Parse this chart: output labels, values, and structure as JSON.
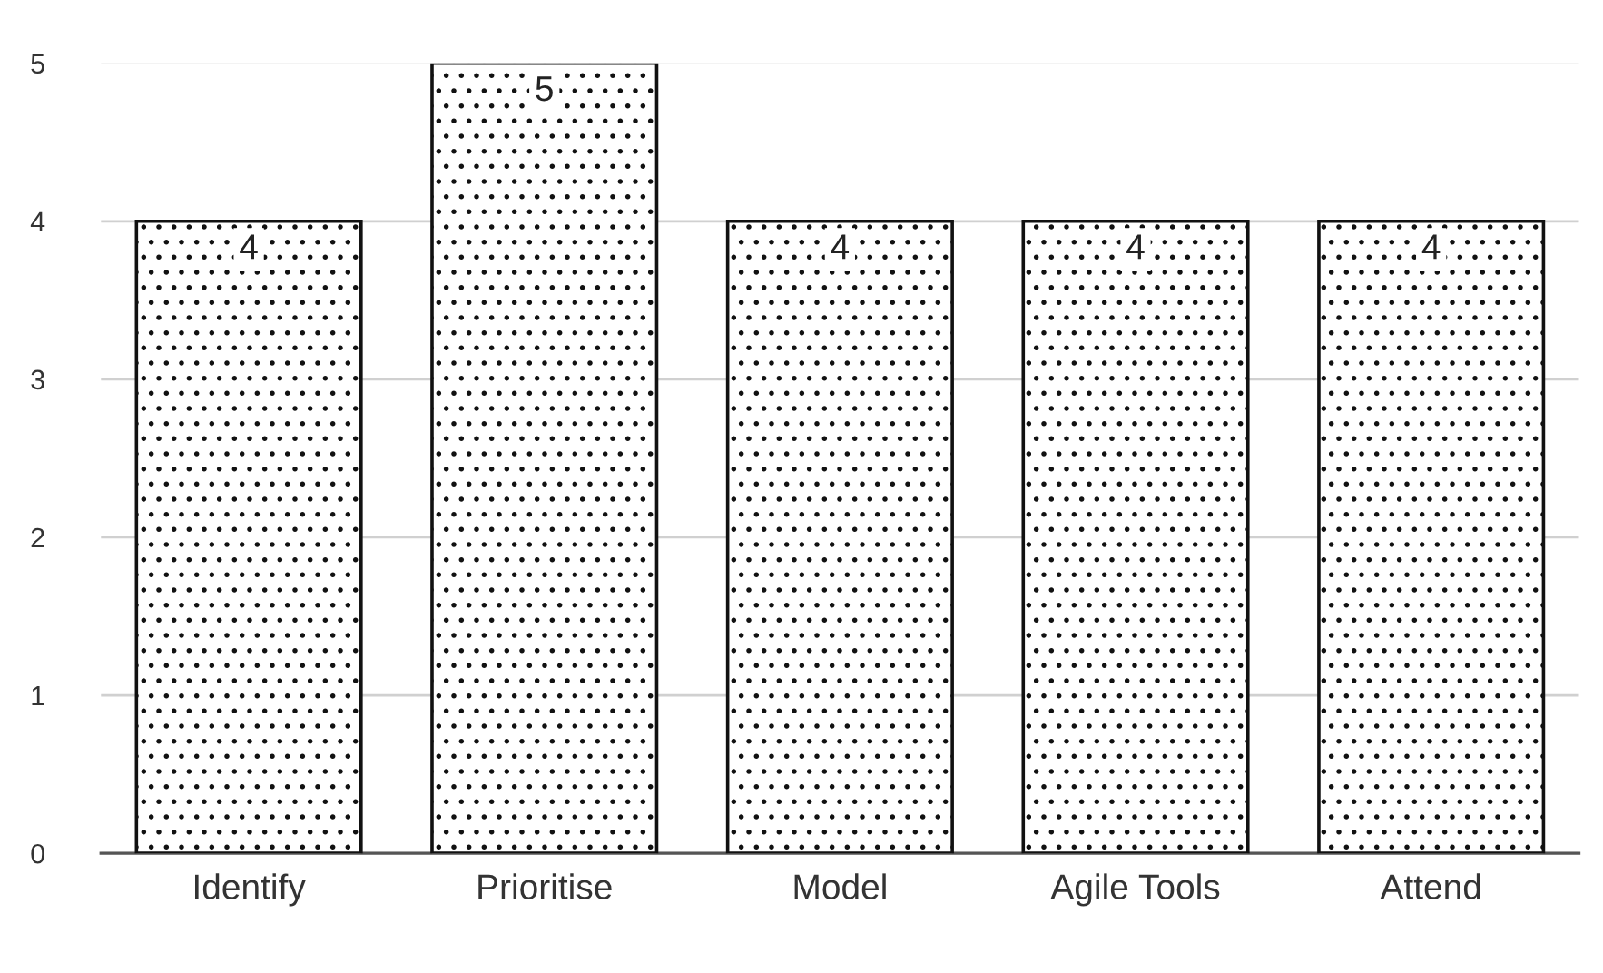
{
  "chart_data": {
    "type": "bar",
    "categories": [
      "Identify",
      "Prioritise",
      "Model",
      "Agile Tools",
      "Attend"
    ],
    "values": [
      4,
      5,
      4,
      4,
      4
    ],
    "color": "#111111",
    "ylim": [
      0,
      5
    ],
    "yticks": [
      0,
      1,
      2,
      3,
      4,
      5
    ],
    "grid": "y",
    "data_labels": true
  }
}
